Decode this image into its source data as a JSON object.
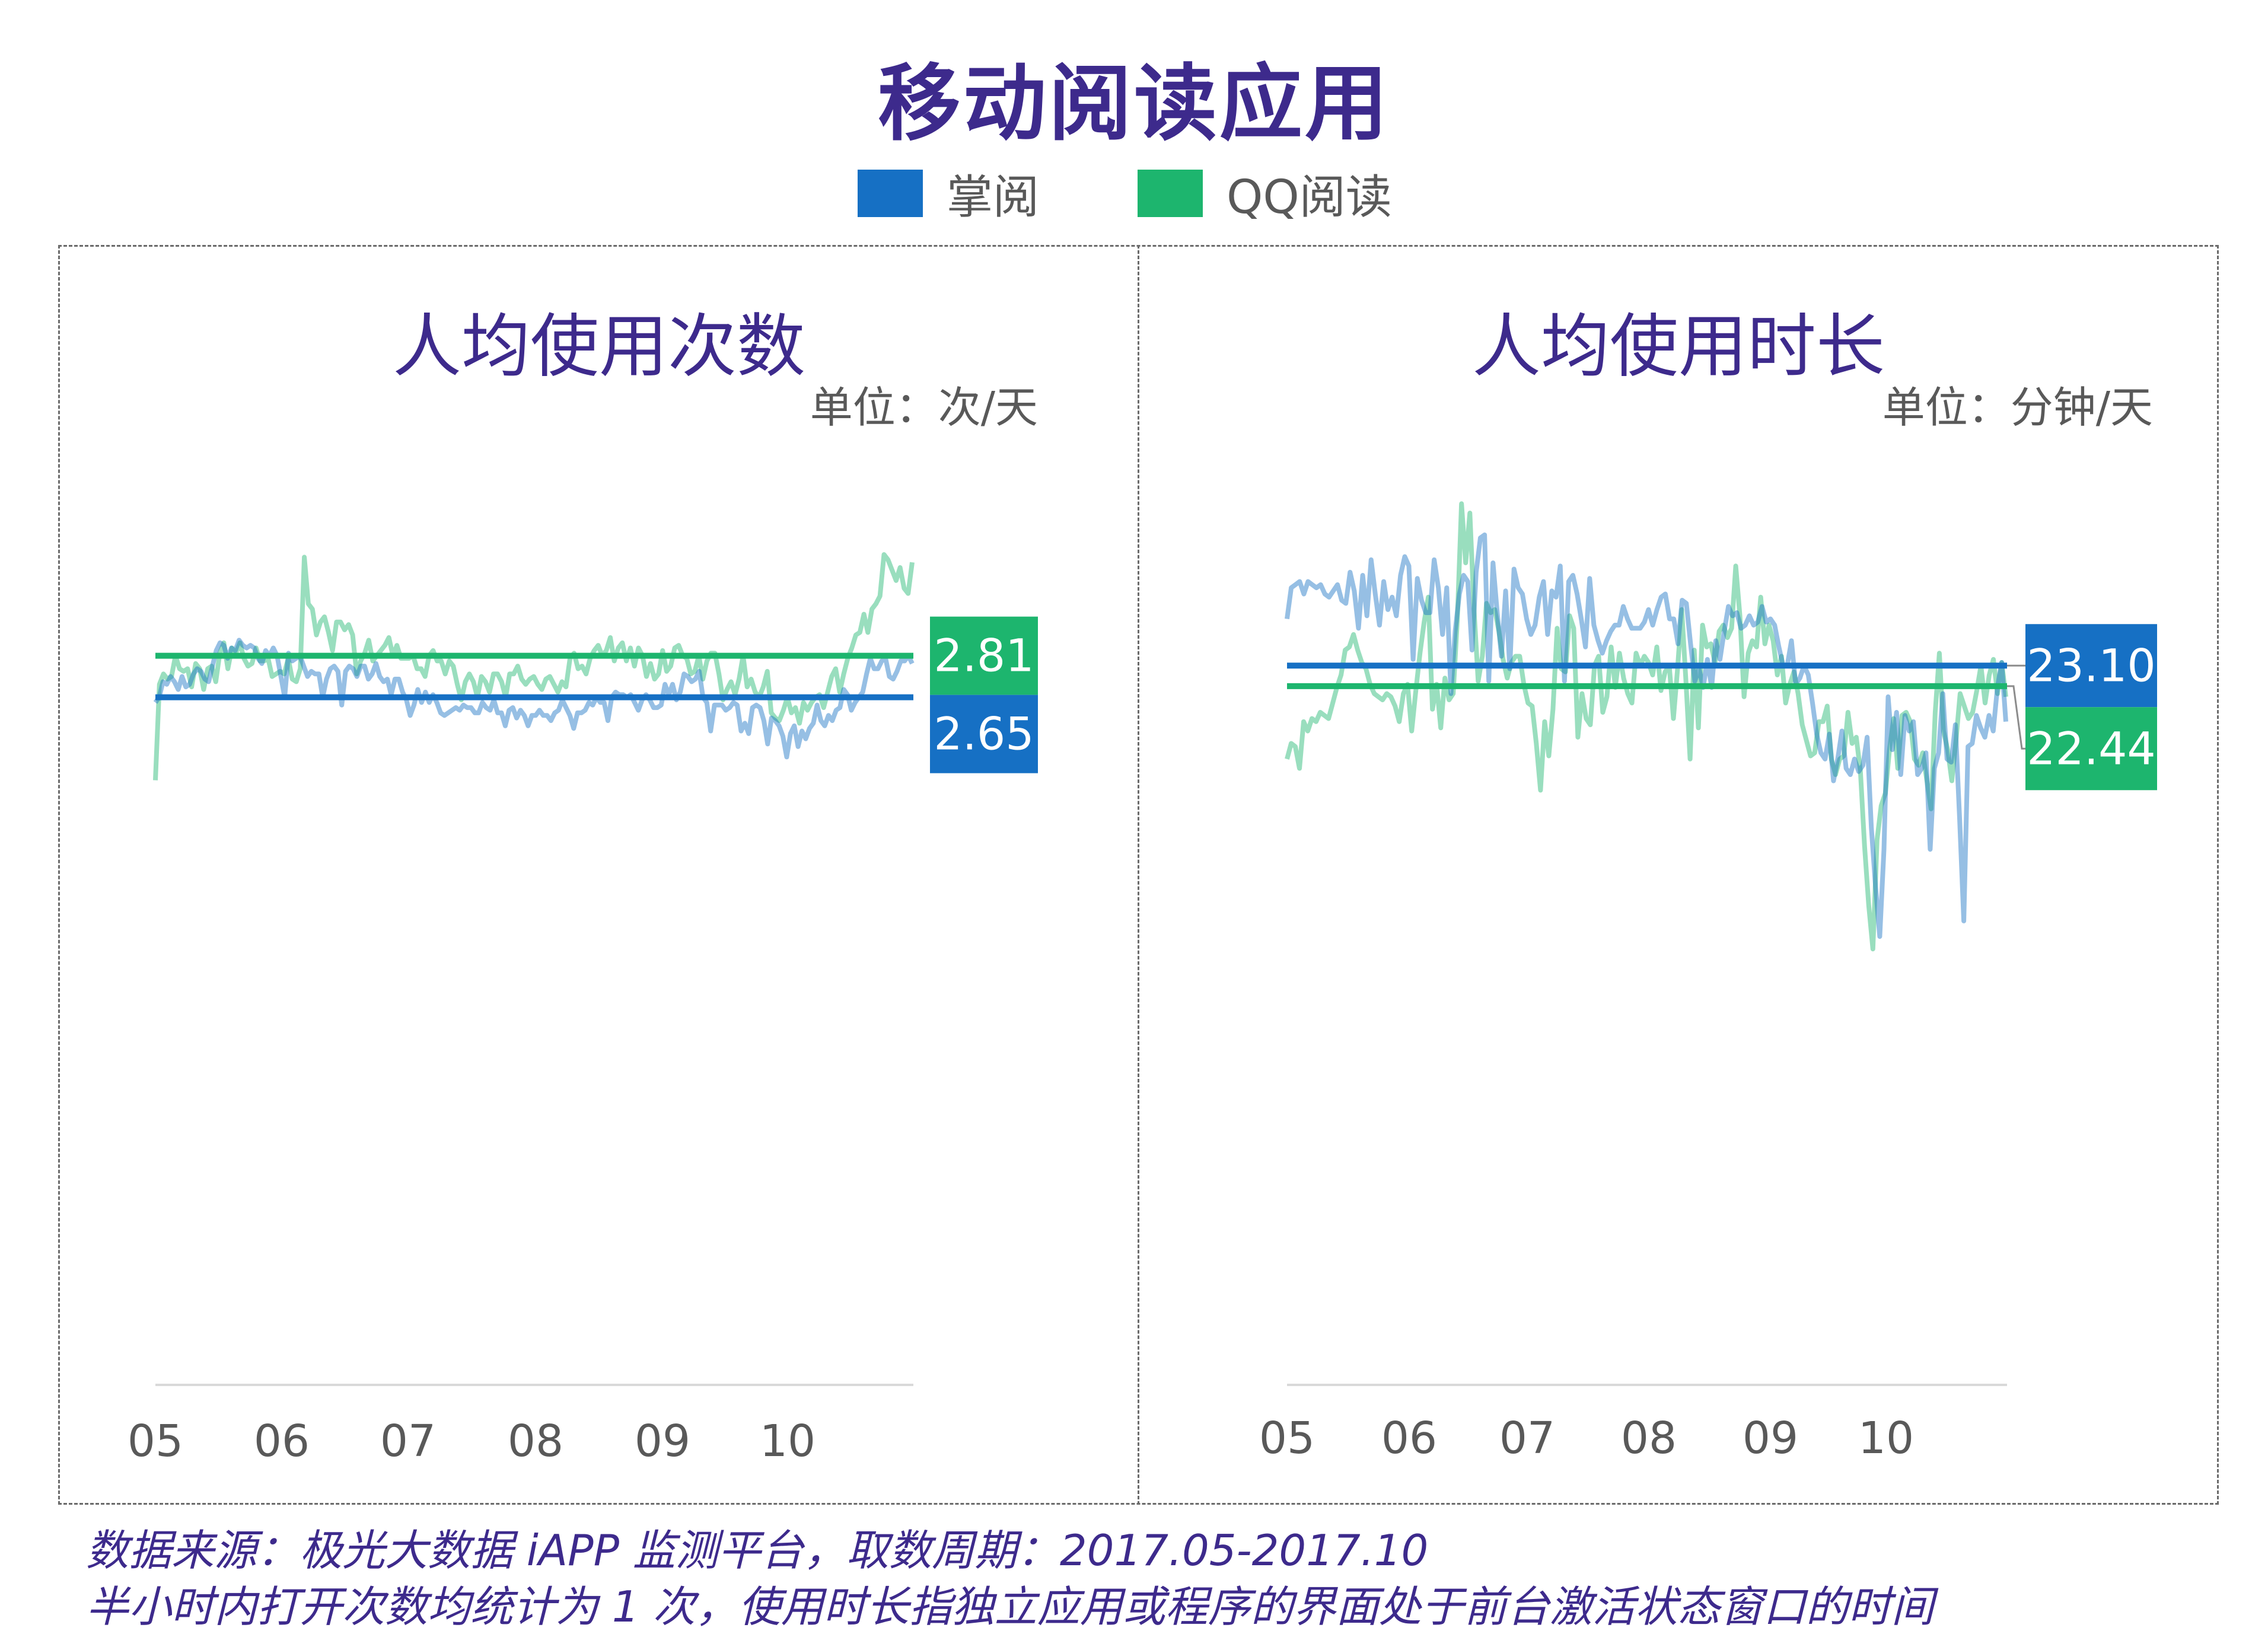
{
  "title": "移动阅读应用",
  "legend": [
    {
      "label": "掌阅",
      "color": "#1670c4"
    },
    {
      "label": "QQ阅读",
      "color": "#1db56e"
    }
  ],
  "footnote": {
    "line1": "数据来源：极光大数据 iAPP 监测平台，取数周期：2017.05-2017.10",
    "line2": "半小时内打开次数均统计为 1 次，使用时长指独立应用或程序的界面处于前台激活状态窗口的时间"
  },
  "chart_data": [
    {
      "type": "line",
      "title": "人均使用次数",
      "unit": "单位：次/天",
      "x_tick_labels": [
        "05",
        "06",
        "07",
        "08",
        "09",
        "10"
      ],
      "ylim": [
        0,
        3.6
      ],
      "grid": false,
      "series": [
        {
          "name": "掌阅",
          "color": "#1670c4",
          "values": [
            2.63,
            2.65,
            2.71,
            2.7,
            2.73,
            2.71,
            2.68,
            2.73,
            2.69,
            2.7,
            2.74,
            2.76,
            2.75,
            2.72,
            2.71,
            2.77,
            2.83,
            2.86,
            2.85,
            2.8,
            2.84,
            2.83,
            2.87,
            2.85,
            2.84,
            2.85,
            2.84,
            2.8,
            2.78,
            2.83,
            2.81,
            2.84,
            2.81,
            2.73,
            2.65,
            2.82,
            2.79,
            2.8,
            2.81,
            2.77,
            2.73,
            2.75,
            2.74,
            2.74,
            2.65,
            2.72,
            2.76,
            2.77,
            2.75,
            2.62,
            2.75,
            2.77,
            2.76,
            2.73,
            2.77,
            2.77,
            2.72,
            2.74,
            2.78,
            2.73,
            2.71,
            2.72,
            2.66,
            2.72,
            2.72,
            2.67,
            2.64,
            2.58,
            2.62,
            2.68,
            2.63,
            2.67,
            2.63,
            2.66,
            2.63,
            2.59,
            2.58,
            2.59,
            2.6,
            2.61,
            2.6,
            2.62,
            2.61,
            2.61,
            2.59,
            2.59,
            2.63,
            2.61,
            2.6,
            2.64,
            2.59,
            2.59,
            2.54,
            2.6,
            2.61,
            2.57,
            2.6,
            2.58,
            2.54,
            2.58,
            2.58,
            2.6,
            2.58,
            2.58,
            2.56,
            2.59,
            2.6,
            2.64,
            2.61,
            2.58,
            2.53,
            2.59,
            2.59,
            2.6,
            2.63,
            2.62,
            2.65,
            2.63,
            2.63,
            2.56,
            2.65,
            2.67,
            2.66,
            2.66,
            2.65,
            2.66,
            2.63,
            2.6,
            2.64,
            2.66,
            2.64,
            2.61,
            2.61,
            2.62,
            2.7,
            2.66,
            2.7,
            2.64,
            2.67,
            2.74,
            2.73,
            2.71,
            2.72,
            2.75,
            2.65,
            2.63,
            2.52,
            2.62,
            2.62,
            2.62,
            2.6,
            2.61,
            2.63,
            2.62,
            2.52,
            2.55,
            2.51,
            2.61,
            2.62,
            2.61,
            2.56,
            2.47,
            2.57,
            2.56,
            2.54,
            2.5,
            2.42,
            2.51,
            2.54,
            2.46,
            2.52,
            2.49,
            2.53,
            2.55,
            2.62,
            2.56,
            2.54,
            2.58,
            2.56,
            2.6,
            2.61,
            2.68,
            2.66,
            2.6,
            2.63,
            2.65,
            2.67,
            2.74,
            2.8,
            2.76,
            2.76,
            2.79,
            2.8,
            2.73,
            2.72,
            2.75,
            2.79,
            2.79,
            2.81,
            2.78
          ]
        },
        {
          "name": "QQ阅读",
          "color": "#1db56e",
          "values": [
            2.33,
            2.7,
            2.74,
            2.72,
            2.73,
            2.81,
            2.76,
            2.75,
            2.76,
            2.69,
            2.78,
            2.76,
            2.68,
            2.76,
            2.77,
            2.71,
            2.82,
            2.86,
            2.76,
            2.84,
            2.82,
            2.86,
            2.8,
            2.77,
            2.78,
            2.84,
            2.79,
            2.79,
            2.8,
            2.73,
            2.74,
            2.75,
            2.74,
            2.8,
            2.72,
            2.71,
            2.76,
            3.19,
            3.01,
            2.99,
            2.89,
            2.94,
            2.96,
            2.9,
            2.83,
            2.94,
            2.94,
            2.91,
            2.93,
            2.89,
            2.74,
            2.79,
            2.82,
            2.87,
            2.79,
            2.81,
            2.83,
            2.85,
            2.88,
            2.81,
            2.85,
            2.8,
            2.8,
            2.8,
            2.81,
            2.76,
            2.76,
            2.73,
            2.81,
            2.83,
            2.79,
            2.79,
            2.74,
            2.79,
            2.77,
            2.7,
            2.64,
            2.71,
            2.74,
            2.71,
            2.65,
            2.73,
            2.71,
            2.67,
            2.74,
            2.74,
            2.71,
            2.65,
            2.74,
            2.74,
            2.77,
            2.72,
            2.7,
            2.72,
            2.73,
            2.7,
            2.68,
            2.72,
            2.73,
            2.7,
            2.67,
            2.71,
            2.69,
            2.8,
            2.82,
            2.76,
            2.77,
            2.74,
            2.8,
            2.83,
            2.85,
            2.81,
            2.83,
            2.88,
            2.79,
            2.84,
            2.86,
            2.79,
            2.84,
            2.77,
            2.84,
            2.81,
            2.73,
            2.78,
            2.72,
            2.74,
            2.83,
            2.75,
            2.77,
            2.84,
            2.85,
            2.81,
            2.8,
            2.74,
            2.75,
            2.81,
            2.72,
            2.79,
            2.82,
            2.82,
            2.74,
            2.64,
            2.68,
            2.71,
            2.66,
            2.72,
            2.81,
            2.69,
            2.72,
            2.67,
            2.65,
            2.69,
            2.75,
            2.59,
            2.57,
            2.56,
            2.6,
            2.65,
            2.59,
            2.61,
            2.55,
            2.63,
            2.6,
            2.63,
            2.65,
            2.66,
            2.61,
            2.67,
            2.73,
            2.76,
            2.67,
            2.74,
            2.8,
            2.84,
            2.89,
            2.9,
            2.97,
            2.9,
            2.99,
            3.01,
            3.04,
            3.2,
            3.18,
            3.14,
            3.1,
            3.15,
            3.07,
            3.05,
            3.17
          ]
        }
      ],
      "averages": [
        {
          "label": "2.81",
          "value": 2.81,
          "color": "#1db56e"
        },
        {
          "label": "2.65",
          "value": 2.65,
          "color": "#1670c4"
        }
      ]
    },
    {
      "type": "line",
      "title": "人均使用时长",
      "unit": "单位：分钟/天",
      "x_tick_labels": [
        "05",
        "06",
        "07",
        "08",
        "09",
        "10"
      ],
      "ylim": [
        0,
        30
      ],
      "grid": false,
      "series": [
        {
          "name": "掌阅",
          "color": "#1670c4",
          "values": [
            24.6,
            25.6,
            25.7,
            25.8,
            25.4,
            25.8,
            25.7,
            25.6,
            25.7,
            25.4,
            25.3,
            25.5,
            25.7,
            25.2,
            25.1,
            26.1,
            25.5,
            24.3,
            26,
            24.7,
            26.5,
            25.4,
            24.4,
            25.8,
            24.9,
            25.3,
            24.7,
            26,
            26.6,
            26.3,
            23.3,
            25.9,
            25.2,
            24.8,
            24.8,
            26.5,
            25.6,
            24.1,
            25.6,
            22.2,
            24.2,
            25.4,
            26,
            25.8,
            23.6,
            26.1,
            27.2,
            27.3,
            22.6,
            26.4,
            24.8,
            23.4,
            25.5,
            23,
            26.2,
            25.6,
            25.4,
            24.6,
            24.1,
            24.4,
            25.3,
            25.8,
            24.1,
            25.5,
            25.3,
            26.3,
            22.6,
            25.8,
            26,
            25.4,
            24.6,
            23.7,
            25.9,
            24.4,
            23.9,
            23.5,
            23.9,
            24.2,
            24.4,
            24.4,
            25,
            24.6,
            24.3,
            24.3,
            24.3,
            24.5,
            24.9,
            24.4,
            24.9,
            25.3,
            25.4,
            24.6,
            24.6,
            23.8,
            25.2,
            25.1,
            23.8,
            22.6,
            23,
            22.4,
            23.3,
            22.4,
            23.9,
            23.3,
            24.2,
            25,
            24.7,
            24.8,
            24.3,
            24.4,
            24.7,
            24.4,
            24.5,
            25,
            24.5,
            24.6,
            24.4,
            23.7,
            23.1,
            23.1,
            23.9,
            22.5,
            22.7,
            23.1,
            22.8,
            21.9,
            20.9,
            20.3,
            20.1,
            20.9,
            19.4,
            20.1,
            21,
            19.8,
            19.6,
            20.1,
            19.7,
            19.9,
            20.8,
            17.9,
            16,
            14.4,
            17.2,
            22.1,
            20.4,
            21.6,
            19.6,
            21.5,
            21,
            21.3,
            19.6,
            19.8,
            20.3,
            17.2,
            19.8,
            20.3,
            22.2,
            20.1,
            20,
            21.2,
            18.2,
            14.9,
            20.5,
            20.6,
            21.5,
            21.1,
            20.8,
            21.5,
            21,
            22.4,
            23.2,
            21.3
          ]
        },
        {
          "name": "QQ阅读",
          "color": "#1db56e",
          "values": [
            20.1,
            20.6,
            20.5,
            19.8,
            21.3,
            21,
            21.4,
            21.3,
            21.6,
            21.5,
            21.4,
            21.9,
            22.4,
            22.8,
            23.6,
            23.7,
            24.1,
            23.6,
            23.2,
            23,
            22.5,
            22.2,
            22.1,
            22,
            22.2,
            22.1,
            21.8,
            21.3,
            22.2,
            22.5,
            21,
            22.3,
            23.5,
            24.5,
            25.3,
            21.7,
            22.5,
            21.1,
            22.7,
            22,
            22.2,
            24.6,
            28.3,
            26.4,
            28,
            24.9,
            22.6,
            23.4,
            25.1,
            24.8,
            24.9,
            24.2,
            23.3,
            22.7,
            23.2,
            23.4,
            23.4,
            22.5,
            21.9,
            21.8,
            20.6,
            19.1,
            21.3,
            20.2,
            21.7,
            24.3,
            23,
            22.9,
            24.7,
            24.3,
            20.8,
            22.2,
            21.4,
            21.2,
            23.1,
            23.4,
            21.6,
            22.1,
            23.7,
            22.4,
            23.5,
            22.7,
            22.2,
            21.9,
            23.5,
            23.1,
            23.4,
            23.2,
            22.8,
            23.7,
            22.3,
            22.9,
            23.1,
            21.4,
            23,
            24.9,
            22.6,
            20.1,
            23.6,
            21.1,
            24.4,
            23.7,
            23.8,
            23.2,
            24.2,
            24.4,
            24,
            24.3,
            26.3,
            24.7,
            22.1,
            23.5,
            23.9,
            23.7,
            25.3,
            23.8,
            24.4,
            23.9,
            22.8,
            23.4,
            21.9,
            22.5,
            22.9,
            22.2,
            21.2,
            20.7,
            20.2,
            20.3,
            21.3,
            21.3,
            21.8,
            20.1,
            19.6,
            20.1,
            20.2,
            21.6,
            20.6,
            20.8,
            19.7,
            17.3,
            15.4,
            14,
            17.5,
            18.6,
            19,
            20.4,
            21.4,
            19.8,
            21.5,
            21.6,
            21.3,
            20.1,
            19.9,
            20.3,
            19.4,
            18.5,
            21.6,
            23.5,
            21,
            20.4,
            19.4,
            20.7,
            22.2,
            21.8,
            21.4,
            21.6,
            22.3,
            23.1,
            21.9,
            22.8,
            23.3,
            22.2,
            23.2,
            22.1
          ]
        }
      ],
      "averages": [
        {
          "label": "23.10",
          "value": 23.1,
          "color": "#1670c4"
        },
        {
          "label": "22.44",
          "value": 22.44,
          "color": "#1db56e"
        }
      ]
    }
  ]
}
